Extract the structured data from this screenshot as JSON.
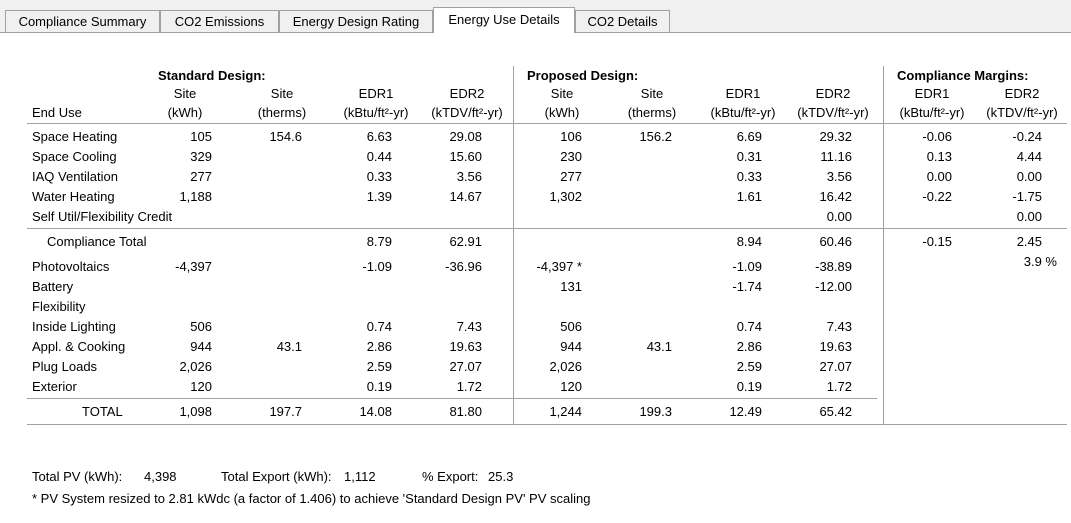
{
  "tabs": [
    {
      "label": "Compliance Summary"
    },
    {
      "label": "CO2 Emissions"
    },
    {
      "label": "Energy Design Rating"
    },
    {
      "label": "Energy Use Details"
    },
    {
      "label": "CO2 Details"
    }
  ],
  "headers": {
    "standard_design": "Standard Design:",
    "proposed_design": "Proposed Design:",
    "compliance_margins": "Compliance Margins:",
    "end_use": "End Use",
    "site": "Site",
    "kwh": "(kWh)",
    "therms": "(therms)",
    "edr1": "EDR1",
    "edr1_unit": "(kBtu/ft²-yr)",
    "edr2": "EDR2",
    "edr2_unit": "(kTDV/ft²-yr)"
  },
  "rows": [
    {
      "label": "Space Heating",
      "s_kwh": "105",
      "s_therms": "154.6",
      "s_edr1": "6.63",
      "s_edr2": "29.08",
      "p_kwh": "106",
      "p_therms": "156.2",
      "p_edr1": "6.69",
      "p_edr2": "29.32",
      "m_edr1": "-0.06",
      "m_edr2": "-0.24"
    },
    {
      "label": "Space Cooling",
      "s_kwh": "329",
      "s_therms": "",
      "s_edr1": "0.44",
      "s_edr2": "15.60",
      "p_kwh": "230",
      "p_therms": "",
      "p_edr1": "0.31",
      "p_edr2": "11.16",
      "m_edr1": "0.13",
      "m_edr2": "4.44"
    },
    {
      "label": "IAQ Ventilation",
      "s_kwh": "277",
      "s_therms": "",
      "s_edr1": "0.33",
      "s_edr2": "3.56",
      "p_kwh": "277",
      "p_therms": "",
      "p_edr1": "0.33",
      "p_edr2": "3.56",
      "m_edr1": "0.00",
      "m_edr2": "0.00"
    },
    {
      "label": "Water Heating",
      "s_kwh": "1,188",
      "s_therms": "",
      "s_edr1": "1.39",
      "s_edr2": "14.67",
      "p_kwh": "1,302",
      "p_therms": "",
      "p_edr1": "1.61",
      "p_edr2": "16.42",
      "m_edr1": "-0.22",
      "m_edr2": "-1.75"
    },
    {
      "label": "Self Util/Flexibility Credit",
      "s_kwh": "",
      "s_therms": "",
      "s_edr1": "",
      "s_edr2": "",
      "p_kwh": "",
      "p_therms": "",
      "p_edr1": "",
      "p_edr2": "0.00",
      "m_edr1": "",
      "m_edr2": "0.00"
    }
  ],
  "compliance_total": {
    "label": "Compliance Total",
    "s_edr1": "8.79",
    "s_edr2": "62.91",
    "p_edr1": "8.94",
    "p_edr2": "60.46",
    "m_edr1": "-0.15",
    "m_edr2": "2.45",
    "m_pct": "3.9 %"
  },
  "rows2": [
    {
      "label": "Photovoltaics",
      "s_kwh": "-4,397",
      "s_therms": "",
      "s_edr1": "-1.09",
      "s_edr2": "-36.96",
      "p_kwh": "-4,397 *",
      "p_therms": "",
      "p_edr1": "-1.09",
      "p_edr2": "-38.89"
    },
    {
      "label": "Battery",
      "s_kwh": "",
      "s_therms": "",
      "s_edr1": "",
      "s_edr2": "",
      "p_kwh": "131",
      "p_therms": "",
      "p_edr1": "-1.74",
      "p_edr2": "-12.00"
    },
    {
      "label": "Flexibility",
      "s_kwh": "",
      "s_therms": "",
      "s_edr1": "",
      "s_edr2": "",
      "p_kwh": "",
      "p_therms": "",
      "p_edr1": "",
      "p_edr2": ""
    },
    {
      "label": "Inside Lighting",
      "s_kwh": "506",
      "s_therms": "",
      "s_edr1": "0.74",
      "s_edr2": "7.43",
      "p_kwh": "506",
      "p_therms": "",
      "p_edr1": "0.74",
      "p_edr2": "7.43"
    },
    {
      "label": "Appl. & Cooking",
      "s_kwh": "944",
      "s_therms": "43.1",
      "s_edr1": "2.86",
      "s_edr2": "19.63",
      "p_kwh": "944",
      "p_therms": "43.1",
      "p_edr1": "2.86",
      "p_edr2": "19.63"
    },
    {
      "label": "Plug Loads",
      "s_kwh": "2,026",
      "s_therms": "",
      "s_edr1": "2.59",
      "s_edr2": "27.07",
      "p_kwh": "2,026",
      "p_therms": "",
      "p_edr1": "2.59",
      "p_edr2": "27.07"
    },
    {
      "label": "Exterior",
      "s_kwh": "120",
      "s_therms": "",
      "s_edr1": "0.19",
      "s_edr2": "1.72",
      "p_kwh": "120",
      "p_therms": "",
      "p_edr1": "0.19",
      "p_edr2": "1.72"
    }
  ],
  "total": {
    "label": "TOTAL",
    "s_kwh": "1,098",
    "s_therms": "197.7",
    "s_edr1": "14.08",
    "s_edr2": "81.80",
    "p_kwh": "1,244",
    "p_therms": "199.3",
    "p_edr1": "12.49",
    "p_edr2": "65.42"
  },
  "footer": {
    "total_pv_label": "Total PV (kWh):",
    "total_pv_value": "4,398",
    "total_export_label": "Total Export (kWh):",
    "total_export_value": "1,112",
    "pct_export_label": "% Export:",
    "pct_export_value": "25.3",
    "note": "* PV System resized to 2.81 kWdc (a factor of 1.406) to achieve 'Standard Design PV' PV scaling"
  }
}
